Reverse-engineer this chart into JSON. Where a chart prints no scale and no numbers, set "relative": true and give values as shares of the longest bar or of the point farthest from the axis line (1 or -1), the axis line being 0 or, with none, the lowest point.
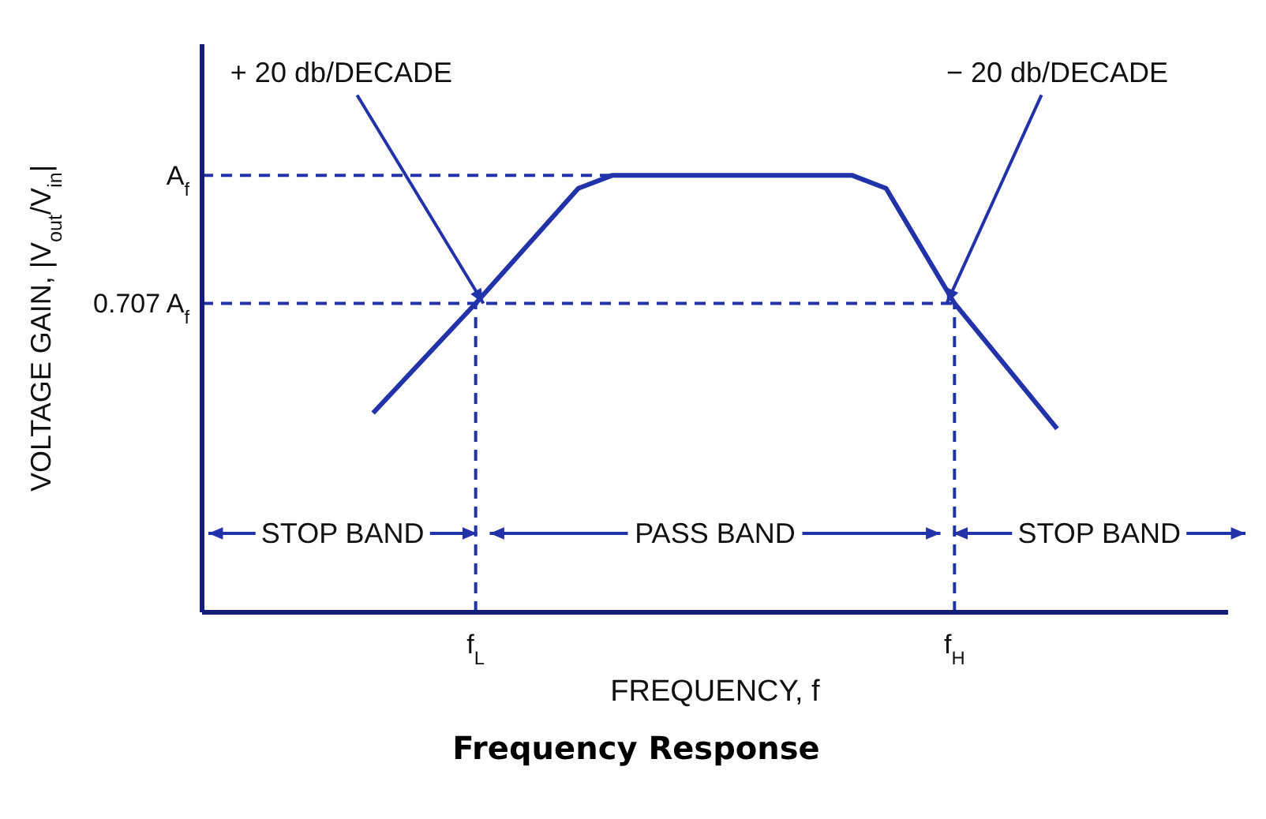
{
  "chart_data": {
    "type": "line",
    "title": "Frequency Response",
    "xlabel": "FREQUENCY, f",
    "ylabel": "VOLTAGE GAIN, |V$_{out}$/V$_{in}$|",
    "relative": true,
    "categories": [
      null,
      null,
      null,
      null,
      null,
      null,
      null,
      null,
      "f$_{L}$",
      null,
      null,
      null,
      null,
      null,
      null,
      null,
      null,
      null,
      null,
      null,
      null,
      null,
      "f$_{H}$",
      null,
      null,
      null,
      null,
      null,
      null,
      null,
      null
    ],
    "series": [
      {
        "color": "#2233aa",
        "values": [
          null,
          null,
          null,
          null,
          null,
          0.456,
          null,
          null,
          0.707,
          null,
          null,
          0.97,
          1,
          null,
          null,
          null,
          null,
          null,
          null,
          1,
          0.97,
          null,
          0.707,
          null,
          null,
          0.42,
          null,
          null,
          null,
          null,
          null
        ]
      }
    ],
    "ref_lines": [
      {
        "axis": "y",
        "value": 1,
        "label": "A$_{f}$",
        "color": "#2233aa",
        "line_style": "dashed"
      },
      {
        "axis": "y",
        "value": 0.707,
        "label": "0.707 A$_{f}$",
        "color": "#2233aa",
        "line_style": "dashed"
      },
      {
        "axis": "x",
        "value": "f$_{L}$",
        "color": "#2233aa",
        "line_style": "dashed"
      },
      {
        "axis": "x",
        "value": "f$_{H}$",
        "color": "#2233aa",
        "line_style": "dashed"
      }
    ],
    "annotations": [
      {
        "text": "+ 20 db/DECADE",
        "x": "f$_{L}$",
        "y": 0.707
      },
      {
        "text": "− 20 db/DECADE",
        "x": "f$_{H}$",
        "y": 0.707
      },
      "STOP BAND",
      "PASS BAND",
      "STOP BAND"
    ],
    "grid": false,
    "legend": false,
    "marker": "none",
    "line_style": "solid"
  }
}
